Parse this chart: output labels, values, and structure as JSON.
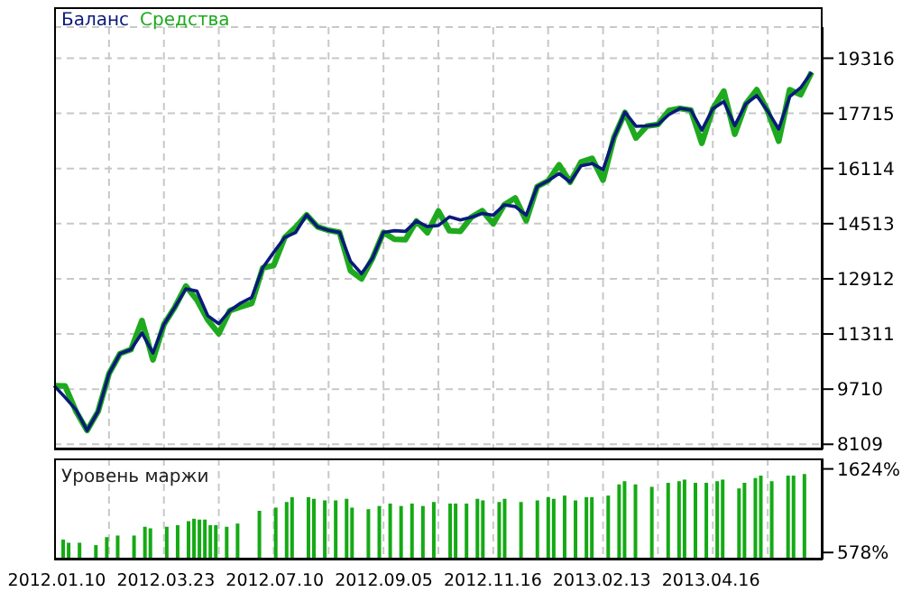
{
  "chart_data": [
    {
      "type": "line",
      "legend": "top left",
      "grid": true,
      "tick_labels": "y",
      "categories": [
        null,
        null,
        null,
        null,
        null,
        null,
        null,
        null,
        null,
        null,
        null,
        null,
        null,
        null,
        null,
        null,
        null,
        null,
        null,
        null,
        null,
        null,
        null,
        null,
        null,
        null,
        null,
        null,
        null,
        null,
        null,
        null,
        null,
        null,
        null,
        null,
        null,
        null,
        null,
        null,
        null,
        null,
        null,
        null,
        null,
        null,
        null,
        null,
        null,
        null,
        null,
        null,
        null,
        null,
        null,
        null,
        null,
        null,
        null,
        null,
        null,
        null,
        null,
        null,
        null,
        null,
        null,
        null,
        null,
        null,
        null
      ],
      "series": [
        {
          "name": "Баланс",
          "color": "#0a1a7a",
          "values": [
            9810,
            9470,
            9110,
            8510,
            9060,
            10160,
            10740,
            10860,
            11340,
            10760,
            11590,
            12090,
            12620,
            12560,
            11840,
            11610,
            11990,
            12210,
            12370,
            13230,
            13680,
            14110,
            14260,
            14770,
            14420,
            14320,
            14260,
            13420,
            13060,
            13510,
            14260,
            14310,
            14290,
            14590,
            14430,
            14460,
            14710,
            14620,
            14700,
            14810,
            14760,
            15060,
            15010,
            14760,
            15590,
            15760,
            15970,
            15720,
            16190,
            16260,
            16080,
            17020,
            17750,
            17340,
            17350,
            17390,
            17680,
            17860,
            17810,
            17230,
            17850,
            18060,
            17360,
            17990,
            18230,
            17780,
            17260,
            18200,
            18460,
            18910,
            null
          ]
        },
        {
          "name": "Средства",
          "color": "#1eaa1e",
          "values": [
            9810,
            9800,
            9060,
            8510,
            9060,
            10160,
            10740,
            10860,
            11700,
            10560,
            11590,
            12090,
            12700,
            12300,
            11720,
            11320,
            11990,
            12100,
            12200,
            13230,
            13300,
            14110,
            14410,
            14770,
            14420,
            14320,
            14260,
            13150,
            12910,
            13510,
            14260,
            14060,
            14050,
            14590,
            14250,
            14880,
            14310,
            14290,
            14700,
            14890,
            14510,
            15060,
            15260,
            14600,
            15590,
            15760,
            16220,
            15720,
            16300,
            16410,
            15780,
            17020,
            17740,
            17000,
            17350,
            17390,
            17800,
            17860,
            17810,
            16850,
            17850,
            18360,
            17110,
            17990,
            18400,
            17780,
            16910,
            18400,
            18260,
            18910,
            null
          ]
        }
      ],
      "ylim": [
        7960,
        20220
      ],
      "yticks": [
        8109,
        9710,
        11311,
        12912,
        14513,
        16114,
        17715,
        19316
      ]
    },
    {
      "type": "bar",
      "title": "Уровень маржи",
      "grid": "x",
      "categories": [
        "2012.01.10",
        null,
        null,
        null,
        null,
        null,
        null,
        null,
        null,
        null,
        null,
        null,
        null,
        null,
        null,
        null,
        null,
        null,
        null,
        null,
        "2012.03.23",
        null,
        null,
        null,
        null,
        null,
        null,
        null,
        null,
        null,
        null,
        null,
        null,
        null,
        null,
        null,
        null,
        null,
        null,
        null,
        "2012.07.10",
        null,
        null,
        null,
        null,
        null,
        null,
        null,
        null,
        null,
        null,
        null,
        null,
        null,
        null,
        null,
        null,
        null,
        null,
        null,
        "2012.09.05",
        null,
        null,
        null,
        null,
        null,
        null,
        null,
        null,
        null,
        null,
        null,
        null,
        null,
        null,
        null,
        null,
        null,
        null,
        null,
        "2012.11.16",
        null,
        null,
        null,
        null,
        null,
        null,
        null,
        null,
        null,
        null,
        null,
        null,
        null,
        null,
        null,
        null,
        null,
        null,
        null,
        "2013.02.13",
        null,
        null,
        null,
        null,
        null,
        null,
        null,
        null,
        null,
        null,
        null,
        null,
        null,
        null,
        null,
        null,
        null,
        null,
        null,
        "2013.04.16",
        null,
        null,
        null,
        null,
        null,
        null,
        null,
        null,
        null,
        null,
        null,
        null,
        null,
        null,
        null,
        null,
        null,
        null,
        null,
        null
      ],
      "series": [
        {
          "color": "#14aa14",
          "values": [
            null,
            740,
            700,
            null,
            700,
            null,
            null,
            670,
            null,
            770,
            null,
            790,
            null,
            null,
            790,
            null,
            900,
            880,
            null,
            null,
            900,
            null,
            920,
            null,
            970,
            1000,
            990,
            990,
            920,
            920,
            null,
            900,
            null,
            940,
            null,
            null,
            null,
            1100,
            null,
            null,
            1140,
            null,
            1210,
            1270,
            null,
            null,
            1270,
            1250,
            null,
            1230,
            null,
            1230,
            null,
            1250,
            1140,
            null,
            null,
            1120,
            null,
            1160,
            null,
            1190,
            null,
            1160,
            null,
            1190,
            null,
            1160,
            null,
            1210,
            null,
            null,
            1190,
            1190,
            null,
            1190,
            null,
            1250,
            1230,
            null,
            null,
            1210,
            1250,
            null,
            null,
            1210,
            null,
            null,
            1230,
            null,
            1270,
            1250,
            null,
            1290,
            null,
            1230,
            null,
            1270,
            1270,
            null,
            null,
            1290,
            null,
            1430,
            1470,
            null,
            1430,
            null,
            null,
            1400,
            null,
            null,
            1450,
            null,
            1470,
            1490,
            null,
            1450,
            null,
            1450,
            null,
            1470,
            1490,
            null,
            null,
            1380,
            1450,
            null,
            1510,
            1540,
            null,
            1470,
            null,
            null,
            1540,
            1540,
            null,
            1560,
            null,
            null,
            null
          ]
        }
      ],
      "ylim": [
        490,
        1755
      ],
      "yticks": [
        {
          "value": 578,
          "label": "578%"
        },
        {
          "value": 1624,
          "label": "1624%"
        }
      ]
    }
  ]
}
